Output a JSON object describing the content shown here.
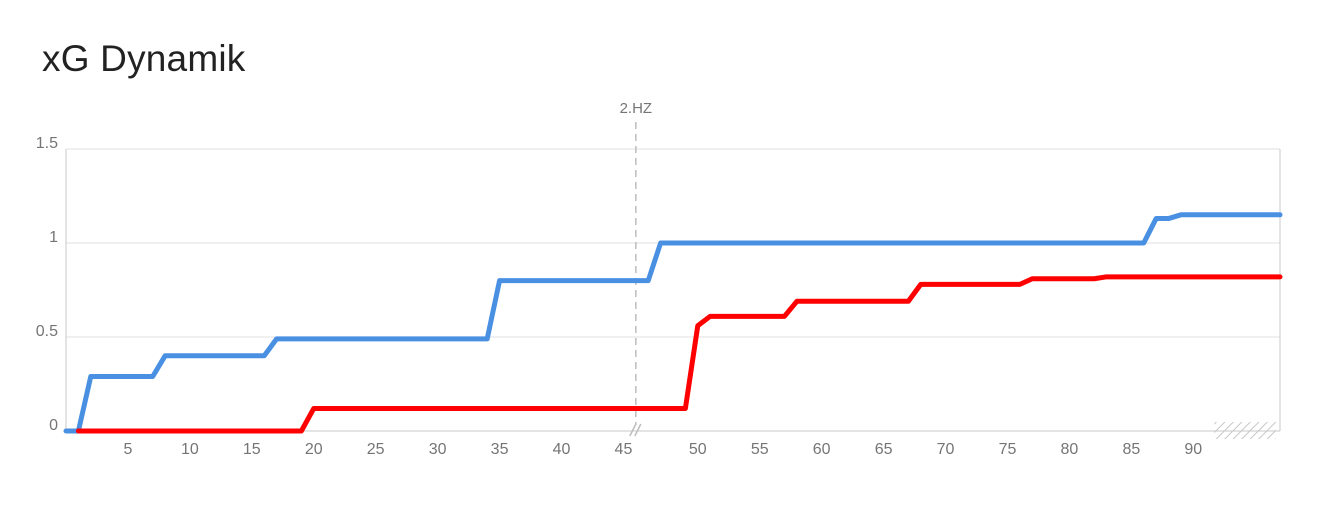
{
  "chart_data": {
    "type": "line",
    "title": "xG Dynamik",
    "xlabel": "",
    "ylabel": "",
    "xlim": [
      0,
      98
    ],
    "ylim": [
      0,
      1.5
    ],
    "x_ticks": [
      5,
      10,
      15,
      20,
      25,
      30,
      35,
      40,
      45,
      50,
      55,
      60,
      65,
      70,
      75,
      80,
      85,
      90
    ],
    "x_tick_labels": [
      "5",
      "10",
      "15",
      "20",
      "25",
      "30",
      "35",
      "40",
      "45",
      "50",
      "55",
      "60",
      "65",
      "70",
      "75",
      "80",
      "85",
      "90"
    ],
    "y_ticks": [
      0,
      0.5,
      1,
      1.5
    ],
    "y_tick_labels": [
      "0",
      "0.5",
      "1",
      "1.5"
    ],
    "grid": true,
    "annotations": [
      {
        "label": "2.HZ",
        "x": 46
      }
    ],
    "series": [
      {
        "color": "#4a90e2",
        "points": [
          [
            0,
            0
          ],
          [
            1,
            0
          ],
          [
            2,
            0.29
          ],
          [
            7,
            0.29
          ],
          [
            8,
            0.4
          ],
          [
            16,
            0.4
          ],
          [
            17,
            0.49
          ],
          [
            34,
            0.49
          ],
          [
            35,
            0.8
          ],
          [
            47,
            0.8
          ],
          [
            48,
            1.0
          ],
          [
            87,
            1.0
          ],
          [
            88,
            1.13
          ],
          [
            89,
            1.13
          ],
          [
            90,
            1.15
          ],
          [
            98,
            1.15
          ]
        ]
      },
      {
        "color": "#ff0000",
        "points": [
          [
            1,
            0
          ],
          [
            19,
            0
          ],
          [
            20,
            0.12
          ],
          [
            50,
            0.12
          ],
          [
            51,
            0.56
          ],
          [
            52,
            0.61
          ],
          [
            58,
            0.61
          ],
          [
            59,
            0.69
          ],
          [
            68,
            0.69
          ],
          [
            69,
            0.78
          ],
          [
            77,
            0.78
          ],
          [
            78,
            0.81
          ],
          [
            83,
            0.81
          ],
          [
            84,
            0.82
          ],
          [
            98,
            0.82
          ]
        ]
      }
    ],
    "colors": {
      "grid": "#e0e0e0",
      "axis": "#c8c8c8",
      "tick_text": "#757575",
      "marker_line": "#bdbdbd"
    }
  }
}
